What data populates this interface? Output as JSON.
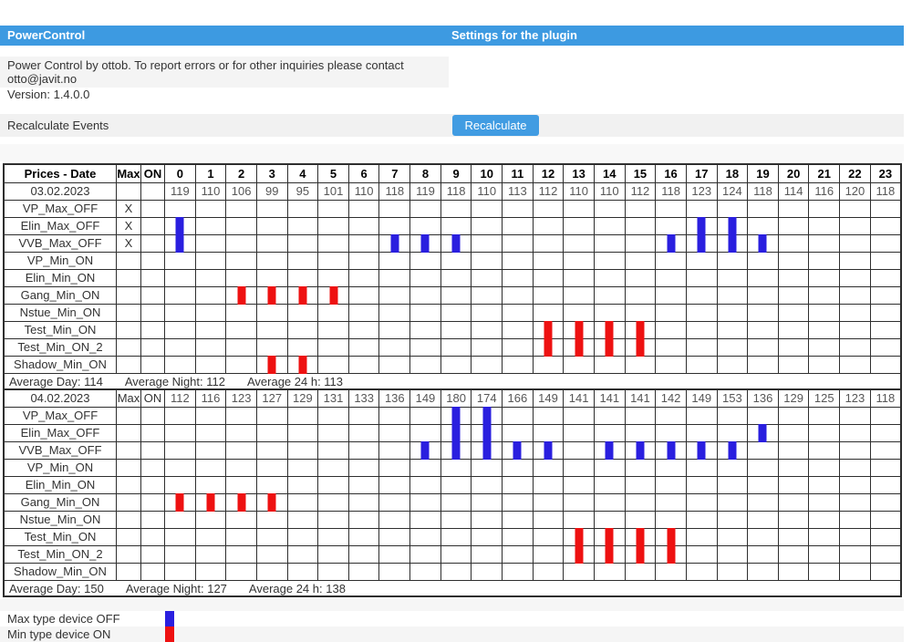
{
  "titlebar": {
    "app_title": "PowerControl",
    "page_title": "Settings for the plugin"
  },
  "info": {
    "line1": "Power Control by ottob. To report errors or for other inquiries please contact",
    "line2": "otto@javit.no",
    "version": "Version: 1.4.0.0"
  },
  "recalculate": {
    "label": "Recalculate Events",
    "button_label": "Recalculate"
  },
  "hours": [
    "0",
    "1",
    "2",
    "3",
    "4",
    "5",
    "6",
    "7",
    "8",
    "9",
    "10",
    "11",
    "12",
    "13",
    "14",
    "15",
    "16",
    "17",
    "18",
    "19",
    "20",
    "21",
    "22",
    "23"
  ],
  "tables": [
    {
      "show_hour_header": true,
      "header": {
        "date_col": "Prices - Date",
        "max_col": "Max",
        "on_col": "ON"
      },
      "date": "03.02.2023",
      "row_max_label": "",
      "row_on_label": "",
      "prices": [
        119,
        110,
        106,
        99,
        95,
        101,
        110,
        118,
        119,
        118,
        110,
        113,
        112,
        110,
        110,
        112,
        118,
        123,
        124,
        118,
        114,
        116,
        120,
        118
      ],
      "devices": [
        {
          "name": "VP_Max_OFF",
          "max_flag": "X",
          "type": "max",
          "marks": []
        },
        {
          "name": "Elin_Max_OFF",
          "max_flag": "X",
          "type": "max",
          "marks": [
            0,
            17,
            18
          ]
        },
        {
          "name": "VVB_Max_OFF",
          "max_flag": "X",
          "type": "max",
          "marks": [
            0,
            7,
            8,
            9,
            16,
            17,
            18,
            19
          ]
        },
        {
          "name": "VP_Min_ON",
          "max_flag": "",
          "type": "min",
          "marks": []
        },
        {
          "name": "Elin_Min_ON",
          "max_flag": "",
          "type": "min",
          "marks": []
        },
        {
          "name": "Gang_Min_ON",
          "max_flag": "",
          "type": "min",
          "marks": [
            2,
            3,
            4,
            5
          ]
        },
        {
          "name": "Nstue_Min_ON",
          "max_flag": "",
          "type": "min",
          "marks": []
        },
        {
          "name": "Test_Min_ON",
          "max_flag": "",
          "type": "min",
          "marks": [
            12,
            13,
            14,
            15
          ]
        },
        {
          "name": "Test_Min_ON_2",
          "max_flag": "",
          "type": "min",
          "marks": [
            12,
            13,
            14,
            15
          ]
        },
        {
          "name": "Shadow_Min_ON",
          "max_flag": "",
          "type": "min",
          "marks": [
            3,
            4
          ]
        }
      ],
      "averages": {
        "day": "Average Day: 114",
        "night": "Average Night: 112",
        "h24": "Average 24 h: 113"
      }
    },
    {
      "show_hour_header": false,
      "header": {
        "date_col": "",
        "max_col": "",
        "on_col": ""
      },
      "date": "04.02.2023",
      "row_max_label": "Max",
      "row_on_label": "ON",
      "prices": [
        112,
        116,
        123,
        127,
        129,
        131,
        133,
        136,
        149,
        180,
        174,
        166,
        149,
        141,
        141,
        141,
        142,
        149,
        153,
        136,
        129,
        125,
        123,
        118
      ],
      "devices": [
        {
          "name": "VP_Max_OFF",
          "max_flag": "",
          "type": "max",
          "marks": [
            9,
            10
          ]
        },
        {
          "name": "Elin_Max_OFF",
          "max_flag": "",
          "type": "max",
          "marks": [
            9,
            10,
            19
          ]
        },
        {
          "name": "VVB_Max_OFF",
          "max_flag": "",
          "type": "max",
          "marks": [
            8,
            9,
            10,
            11,
            12,
            14,
            15,
            16,
            17,
            18
          ]
        },
        {
          "name": "VP_Min_ON",
          "max_flag": "",
          "type": "min",
          "marks": []
        },
        {
          "name": "Elin_Min_ON",
          "max_flag": "",
          "type": "min",
          "marks": []
        },
        {
          "name": "Gang_Min_ON",
          "max_flag": "",
          "type": "min",
          "marks": [
            0,
            1,
            2,
            3
          ]
        },
        {
          "name": "Nstue_Min_ON",
          "max_flag": "",
          "type": "min",
          "marks": []
        },
        {
          "name": "Test_Min_ON",
          "max_flag": "",
          "type": "min",
          "marks": [
            13,
            14,
            15,
            16
          ]
        },
        {
          "name": "Test_Min_ON_2",
          "max_flag": "",
          "type": "min",
          "marks": [
            13,
            14,
            15,
            16
          ]
        },
        {
          "name": "Shadow_Min_ON",
          "max_flag": "",
          "type": "min",
          "marks": []
        }
      ],
      "averages": {
        "day": "Average Day: 150",
        "night": "Average Night: 127",
        "h24": "Average 24 h: 138"
      }
    }
  ],
  "legend": {
    "max_label": "Max type device OFF",
    "min_label": "Min type device ON"
  },
  "colors": {
    "titlebar_blue": "#3d9ae1",
    "button_blue": "#419ce2",
    "max_off_blue": "#2a1fdf",
    "min_on_red": "#ee1111"
  }
}
